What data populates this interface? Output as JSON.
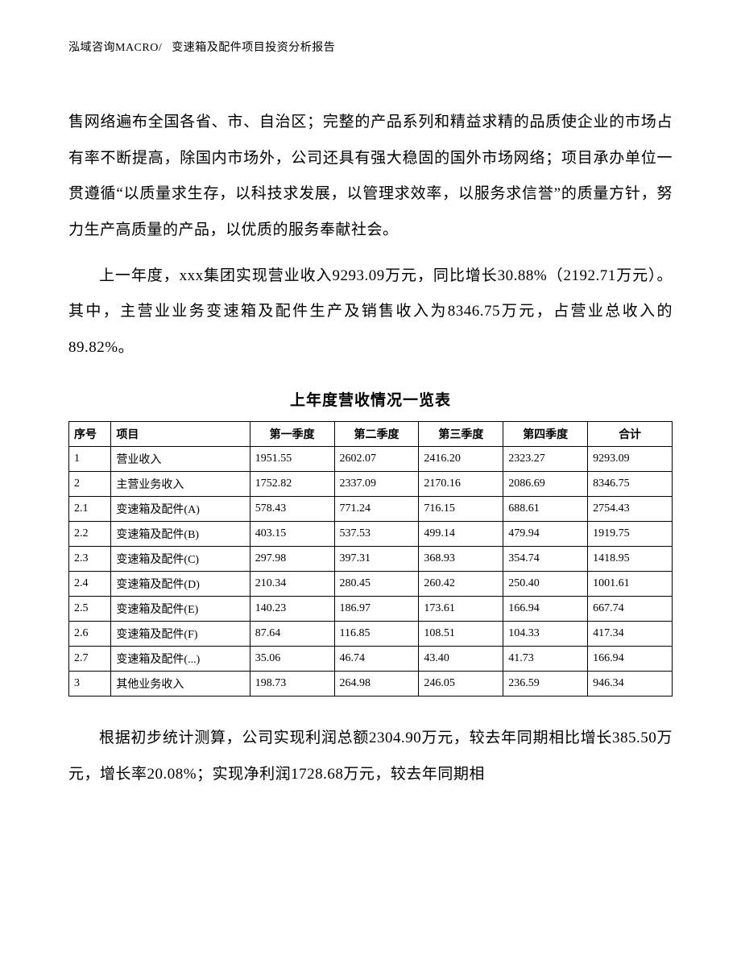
{
  "header": {
    "company": "泓域咨询MACRO/",
    "doc_title": "变速箱及配件项目投资分析报告"
  },
  "paragraphs": {
    "p1": "售网络遍布全国各省、市、自治区；完整的产品系列和精益求精的品质使企业的市场占有率不断提高，除国内市场外，公司还具有强大稳固的国外市场网络；项目承办单位一贯遵循“以质量求生存，以科技求发展，以管理求效率，以服务求信誉”的质量方针，努力生产高质量的产品，以优质的服务奉献社会。",
    "p2": "上一年度，xxx集团实现营业收入9293.09万元，同比增长30.88%（2192.71万元）。其中，主营业业务变速箱及配件生产及销售收入为8346.75万元，占营业总收入的89.82%。",
    "p3": "根据初步统计测算，公司实现利润总额2304.90万元，较去年同期相比增长385.50万元，增长率20.08%；实现净利润1728.68万元，较去年同期相"
  },
  "table": {
    "title": "上年度营收情况一览表",
    "columns": [
      "序号",
      "项目",
      "第一季度",
      "第二季度",
      "第三季度",
      "第四季度",
      "合计"
    ],
    "col_align": [
      "left",
      "left",
      "left",
      "left",
      "left",
      "left",
      "center"
    ],
    "header_align": [
      "left",
      "left",
      "center",
      "center",
      "center",
      "center",
      "center"
    ],
    "rows": [
      [
        "1",
        "营业收入",
        "1951.55",
        "2602.07",
        "2416.20",
        "2323.27",
        "9293.09"
      ],
      [
        "2",
        "主营业务收入",
        "1752.82",
        "2337.09",
        "2170.16",
        "2086.69",
        "8346.75"
      ],
      [
        "2.1",
        "变速箱及配件(A)",
        "578.43",
        "771.24",
        "716.15",
        "688.61",
        "2754.43"
      ],
      [
        "2.2",
        "变速箱及配件(B)",
        "403.15",
        "537.53",
        "499.14",
        "479.94",
        "1919.75"
      ],
      [
        "2.3",
        "变速箱及配件(C)",
        "297.98",
        "397.31",
        "368.93",
        "354.74",
        "1418.95"
      ],
      [
        "2.4",
        "变速箱及配件(D)",
        "210.34",
        "280.45",
        "260.42",
        "250.40",
        "1001.61"
      ],
      [
        "2.5",
        "变速箱及配件(E)",
        "140.23",
        "186.97",
        "173.61",
        "166.94",
        "667.74"
      ],
      [
        "2.6",
        "变速箱及配件(F)",
        "87.64",
        "116.85",
        "108.51",
        "104.33",
        "417.34"
      ],
      [
        "2.7",
        "变速箱及配件(...)",
        "35.06",
        "46.74",
        "43.40",
        "41.73",
        "166.94"
      ],
      [
        "3",
        "其他业务收入",
        "198.73",
        "264.98",
        "246.05",
        "236.59",
        "946.34"
      ]
    ],
    "border_color": "#000000",
    "font_size": 14,
    "header_font_weight": "bold"
  },
  "styling": {
    "background_color": "#ffffff",
    "text_color": "#000000",
    "body_font_size": 19,
    "body_line_height": 2.35,
    "header_font_size": 14,
    "table_title_font_size": 19
  }
}
